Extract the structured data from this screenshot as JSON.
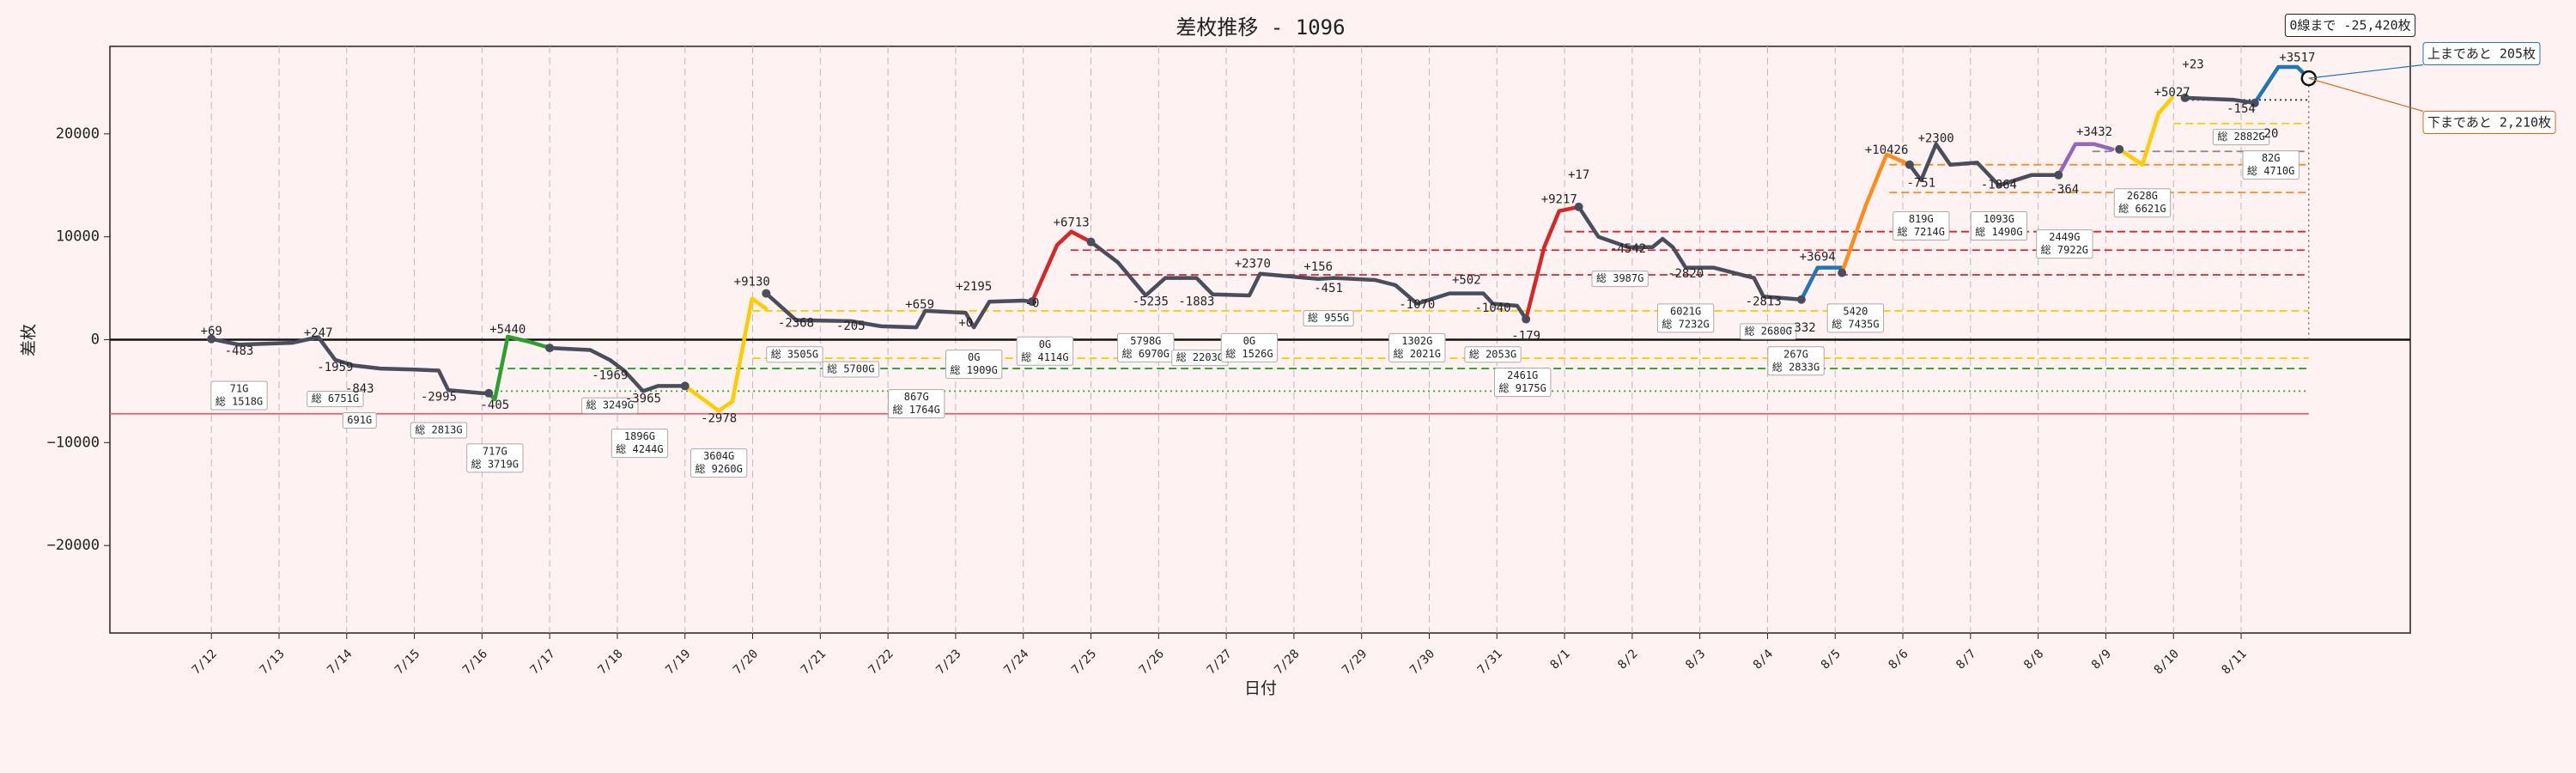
{
  "chart_data": {
    "type": "line",
    "title": "差枚推移 - 1096",
    "x_label": "日付",
    "y_label": "差枚",
    "xlim": [
      -1.5,
      32.5
    ],
    "ylim": [
      -28500,
      28500
    ],
    "xticks": [
      {
        "value": 0,
        "label": "7/12"
      },
      {
        "value": 1,
        "label": "7/13"
      },
      {
        "value": 2,
        "label": "7/14"
      },
      {
        "value": 3,
        "label": "7/15"
      },
      {
        "value": 4,
        "label": "7/16"
      },
      {
        "value": 5,
        "label": "7/17"
      },
      {
        "value": 6,
        "label": "7/18"
      },
      {
        "value": 7,
        "label": "7/19"
      },
      {
        "value": 8,
        "label": "7/20"
      },
      {
        "value": 9,
        "label": "7/21"
      },
      {
        "value": 10,
        "label": "7/22"
      },
      {
        "value": 11,
        "label": "7/23"
      },
      {
        "value": 12,
        "label": "7/24"
      },
      {
        "value": 13,
        "label": "7/25"
      },
      {
        "value": 14,
        "label": "7/26"
      },
      {
        "value": 15,
        "label": "7/27"
      },
      {
        "value": 16,
        "label": "7/28"
      },
      {
        "value": 17,
        "label": "7/29"
      },
      {
        "value": 18,
        "label": "7/30"
      },
      {
        "value": 19,
        "label": "7/31"
      },
      {
        "value": 20,
        "label": "8/1"
      },
      {
        "value": 21,
        "label": "8/2"
      },
      {
        "value": 22,
        "label": "8/3"
      },
      {
        "value": 23,
        "label": "8/4"
      },
      {
        "value": 24,
        "label": "8/5"
      },
      {
        "value": 25,
        "label": "8/6"
      },
      {
        "value": 26,
        "label": "8/7"
      },
      {
        "value": 27,
        "label": "8/8"
      },
      {
        "value": 28,
        "label": "8/9"
      },
      {
        "value": 29,
        "label": "8/10"
      },
      {
        "value": 30,
        "label": "8/11"
      }
    ],
    "holiday_ticks": [
      3,
      6,
      13,
      16,
      24,
      27
    ],
    "holiday_color": "#e02020",
    "yticks": [
      {
        "value": -20000,
        "label": "−20000"
      },
      {
        "value": -10000,
        "label": "−10000"
      },
      0,
      10000,
      20000
    ],
    "grid": true,
    "series": [
      {
        "color": "#4a4e5c",
        "x": [
          0,
          0.41,
          1.2,
          1.58,
          1.83,
          2.1,
          2.5,
          3.0,
          3.36,
          3.5,
          4.0,
          4.1
        ],
        "values": [
          69,
          -483,
          -300,
          247,
          -1959,
          -2500,
          -2800,
          -2900,
          -2995,
          -4900,
          -5200,
          -5200
        ]
      },
      {
        "color": "#2ca02c",
        "x": [
          4.1,
          4.19,
          4.38,
          4.7,
          5.0
        ],
        "values": [
          -5200,
          -5800,
          300,
          -200,
          -800
        ]
      },
      {
        "color": "#4a4e5c",
        "x": [
          5.0,
          5.6,
          5.89,
          6.1,
          6.38,
          6.6,
          7.0
        ],
        "values": [
          -800,
          -1000,
          -1969,
          -3000,
          -5000,
          -4500,
          -4500
        ]
      },
      {
        "color": "#ffcc00",
        "x": [
          7.0,
          7.5,
          7.7,
          7.99,
          8.2
        ],
        "values": [
          -4500,
          -6900,
          -6000,
          4000,
          3000
        ]
      },
      {
        "color": "#4a4e5c",
        "x": [
          8.2,
          8.64,
          9.45,
          9.9,
          10.42,
          10.55,
          11.15,
          11.27,
          11.5,
          12.0,
          12.13
        ],
        "values": [
          4500,
          1900,
          1800,
          1300,
          1200,
          2800,
          2600,
          1200,
          3700,
          3800,
          3700
        ]
      },
      {
        "color": "#d62728",
        "x": [
          12.13,
          12.5,
          12.71,
          13.0
        ],
        "values": [
          3700,
          9200,
          10500,
          9500
        ]
      },
      {
        "color": "#4a4e5c",
        "x": [
          13.0,
          13.4,
          13.81,
          14.1,
          14.56,
          14.8,
          15.34,
          15.5,
          16.36,
          16.6,
          17.2,
          17.5,
          17.82,
          18.3,
          18.8,
          18.94,
          19.3,
          19.43
        ],
        "values": [
          9500,
          7500,
          4300,
          6000,
          6000,
          4400,
          4300,
          6400,
          5900,
          6000,
          5800,
          5300,
          3500,
          4500,
          4500,
          3500,
          3300,
          2000
        ]
      },
      {
        "color": "#d62728",
        "x": [
          19.43,
          19.7,
          19.92,
          20.21
        ],
        "values": [
          2000,
          9000,
          12500,
          12900
        ]
      },
      {
        "color": "#4a4e5c",
        "x": [
          20.21,
          20.5,
          20.94,
          21.3,
          21.45,
          21.6,
          21.79,
          22.2,
          22.8,
          22.94,
          23.5
        ],
        "values": [
          12900,
          10000,
          9000,
          9000,
          9800,
          9000,
          7000,
          7000,
          6000,
          4200,
          3900
        ]
      },
      {
        "color": "#1f77b4",
        "x": [
          23.5,
          23.74,
          24.1
        ],
        "values": [
          3900,
          7000,
          7000
        ]
      },
      {
        "color": "#ff8c1a",
        "x": [
          24.1,
          24.45,
          24.76,
          25.1
        ],
        "values": [
          6500,
          13000,
          18000,
          17000
        ]
      },
      {
        "color": "#4a4e5c",
        "x": [
          25.1,
          25.27,
          25.49,
          25.7,
          26.1,
          26.42,
          26.9,
          27.3
        ],
        "values": [
          17000,
          15500,
          19000,
          17000,
          17200,
          15000,
          16000,
          16000
        ]
      },
      {
        "color": "#9467bd",
        "x": [
          27.3,
          27.55,
          27.83,
          28.1
        ],
        "values": [
          16000,
          19000,
          19000,
          18500
        ]
      },
      {
        "color": "#ffcc00",
        "x": [
          28.2,
          28.54,
          28.78,
          28.98
        ],
        "values": [
          18500,
          17000,
          22000,
          23500
        ]
      },
      {
        "color": "#4a4e5c",
        "x": [
          29.17,
          29.9,
          30.2
        ],
        "values": [
          23500,
          23300,
          23000
        ]
      },
      {
        "color": "#1f77b4",
        "x": [
          30.2,
          30.55,
          30.83,
          31.0
        ],
        "values": [
          23000,
          26500,
          26500,
          25400
        ]
      }
    ],
    "hlines": [
      {
        "value": -7200,
        "color": "#e06070",
        "style": "solid",
        "start": -1.5
      },
      {
        "value": -5000,
        "color": "#2ca02c",
        "style": "dotted",
        "start": 4.2
      },
      {
        "value": -2800,
        "color": "#2ca02c",
        "style": "dashed",
        "start": 4.2
      },
      {
        "value": -1800,
        "color": "#ffcc00",
        "style": "dashed",
        "start": 8.0
      },
      {
        "value": 2800,
        "color": "#ffcc00",
        "style": "dashed",
        "start": 8.0
      },
      {
        "value": 6300,
        "color": "#d62728",
        "style": "dashed",
        "start": 12.7
      },
      {
        "value": 8700,
        "color": "#d62728",
        "style": "dashed",
        "start": 12.7
      },
      {
        "value": 10500,
        "color": "#d62728",
        "style": "dashed",
        "start": 20.0
      },
      {
        "value": 14300,
        "color": "#ff8c1a",
        "style": "dashed",
        "start": 24.8
      },
      {
        "value": 17000,
        "color": "#ff8c1a",
        "style": "dashed",
        "start": 24.8
      },
      {
        "value": 18300,
        "color": "#888888",
        "style": "dashed",
        "start": 27.8
      },
      {
        "value": 21000,
        "color": "#ffcc00",
        "style": "dashed",
        "start": 29.0
      },
      {
        "value": 23300,
        "color": "#333333",
        "style": "dotted",
        "start": 29.2
      }
    ],
    "point_labels": [
      {
        "text": "+69",
        "x": 0,
        "y": 800
      },
      {
        "text": "-483",
        "x": 0.41,
        "y": -1120
      },
      {
        "text": "+247",
        "x": 1.58,
        "y": 640
      },
      {
        "text": "-1959",
        "x": 1.83,
        "y": -2720
      },
      {
        "text": "-843",
        "x": 2.19,
        "y": -4800
      },
      {
        "text": "-2995",
        "x": 3.36,
        "y": -5600
      },
      {
        "text": "+5440",
        "x": 4.38,
        "y": 960,
        "color": "#2ca02c"
      },
      {
        "text": "-405",
        "x": 4.19,
        "y": -6400,
        "color": "#2ca02c"
      },
      {
        "text": "-1969",
        "x": 5.89,
        "y": -3520
      },
      {
        "text": "-3965",
        "x": 6.38,
        "y": -5760
      },
      {
        "text": "-2978",
        "x": 7.5,
        "y": -7680,
        "color": "#ffcc00"
      },
      {
        "text": "+9130",
        "x": 7.99,
        "y": 5600,
        "color": "#ffcc00"
      },
      {
        "text": "-2368",
        "x": 8.64,
        "y": 1600
      },
      {
        "text": "-205",
        "x": 9.45,
        "y": 1280
      },
      {
        "text": "+659",
        "x": 10.47,
        "y": 3360
      },
      {
        "text": "+2195",
        "x": 11.27,
        "y": 5120
      },
      {
        "text": "+0",
        "x": 11.15,
        "y": 1600
      },
      {
        "text": "-0",
        "x": 12.13,
        "y": 3520,
        "color": "#d62728"
      },
      {
        "text": "+6713",
        "x": 12.71,
        "y": 11360,
        "color": "#d62728"
      },
      {
        "text": "-5235",
        "x": 13.88,
        "y": 3680
      },
      {
        "text": "-1883",
        "x": 14.56,
        "y": 3680
      },
      {
        "text": "+2370",
        "x": 15.39,
        "y": 7360
      },
      {
        "text": "+156",
        "x": 16.36,
        "y": 7040
      },
      {
        "text": "-451",
        "x": 16.51,
        "y": 4960
      },
      {
        "text": "-1070",
        "x": 17.82,
        "y": 3360
      },
      {
        "text": "+502",
        "x": 18.55,
        "y": 5760
      },
      {
        "text": "-1040",
        "x": 18.94,
        "y": 3040
      },
      {
        "text": "-179",
        "x": 19.43,
        "y": 320,
        "color": "#d62728"
      },
      {
        "text": "+9217",
        "x": 19.92,
        "y": 13600,
        "color": "#d62728"
      },
      {
        "text": "+17",
        "x": 20.21,
        "y": 16000
      },
      {
        "text": "-4542",
        "x": 20.94,
        "y": 8800
      },
      {
        "text": "-2820",
        "x": 21.79,
        "y": 6400
      },
      {
        "text": "-2813",
        "x": 22.94,
        "y": 3680
      },
      {
        "text": "+3694",
        "x": 23.74,
        "y": 8000,
        "color": "#1f77b4"
      },
      {
        "text": "-332",
        "x": 23.5,
        "y": 1120,
        "color": "#1f77b4"
      },
      {
        "text": "+10426",
        "x": 24.76,
        "y": 18400,
        "color": "#ff8c1a"
      },
      {
        "text": "-751",
        "x": 25.27,
        "y": 15200
      },
      {
        "text": "+2300",
        "x": 25.49,
        "y": 19520
      },
      {
        "text": "-1864",
        "x": 26.42,
        "y": 15040
      },
      {
        "text": "-364",
        "x": 27.39,
        "y": 14560,
        "color": "#9467bd"
      },
      {
        "text": "+3432",
        "x": 27.83,
        "y": 20160,
        "color": "#9467bd"
      },
      {
        "text": "+5027",
        "x": 28.98,
        "y": 24000,
        "color": "#ffcc00"
      },
      {
        "text": "+23",
        "x": 29.29,
        "y": 26720
      },
      {
        "text": "-154",
        "x": 30.0,
        "y": 22400
      },
      {
        "text": "-20",
        "x": 30.39,
        "y": 20000,
        "color": "#1f77b4"
      },
      {
        "text": "+3517",
        "x": 30.83,
        "y": 27360,
        "color": "#1f77b4"
      }
    ],
    "game_boxes": [
      {
        "lines": [
          "71G",
          "総 1518G"
        ],
        "x": 0.41,
        "y": -4800
      },
      {
        "lines": [
          "総 6751G"
        ],
        "x": 1.83,
        "y": -5760
      },
      {
        "lines": [
          "691G"
        ],
        "x": 2.19,
        "y": -7840
      },
      {
        "lines": [
          "総 2813G"
        ],
        "x": 3.36,
        "y": -8800
      },
      {
        "lines": [
          "717G",
          "総 3719G"
        ],
        "x": 4.19,
        "y": -10880
      },
      {
        "lines": [
          "総 3249G"
        ],
        "x": 5.89,
        "y": -6400
      },
      {
        "lines": [
          "1896G",
          "総 4244G"
        ],
        "x": 6.33,
        "y": -9440
      },
      {
        "lines": [
          "3604G",
          "総 9260G"
        ],
        "x": 7.5,
        "y": -11360
      },
      {
        "lines": [
          "総 3505G"
        ],
        "x": 8.62,
        "y": -1440
      },
      {
        "lines": [
          "総 5700G"
        ],
        "x": 9.45,
        "y": -2880
      },
      {
        "lines": [
          "867G",
          "総 1764G"
        ],
        "x": 10.42,
        "y": -5600
      },
      {
        "lines": [
          "0G",
          "総 1909G"
        ],
        "x": 11.27,
        "y": -1760
      },
      {
        "lines": [
          "0G",
          "総 4114G"
        ],
        "x": 12.32,
        "y": -480
      },
      {
        "lines": [
          "5798G",
          "総 6970G"
        ],
        "x": 13.81,
        "y": -160
      },
      {
        "lines": [
          "総 2203G"
        ],
        "x": 14.61,
        "y": -1760
      },
      {
        "lines": [
          "0G",
          "総 1526G"
        ],
        "x": 15.34,
        "y": -160
      },
      {
        "lines": [
          "総 955G"
        ],
        "x": 16.51,
        "y": 2080
      },
      {
        "lines": [
          "1302G",
          "総 2021G"
        ],
        "x": 17.82,
        "y": -160
      },
      {
        "lines": [
          "総 2053G"
        ],
        "x": 18.94,
        "y": -1440
      },
      {
        "lines": [
          "2461G",
          "総 9175G"
        ],
        "x": 19.38,
        "y": -3520
      },
      {
        "lines": [
          "総 3987G"
        ],
        "x": 20.82,
        "y": 5920
      },
      {
        "lines": [
          "6021G",
          "総 7232G"
        ],
        "x": 21.79,
        "y": 2720
      },
      {
        "lines": [
          "総 2680G"
        ],
        "x": 23.01,
        "y": 800
      },
      {
        "lines": [
          "267G",
          "総 2833G"
        ],
        "x": 23.42,
        "y": -1440
      },
      {
        "lines": [
          "5420",
          "総 7435G"
        ],
        "x": 24.3,
        "y": 2720
      },
      {
        "lines": [
          "819G",
          "総 7214G"
        ],
        "x": 25.27,
        "y": 11680
      },
      {
        "lines": [
          "1093G",
          "総 1490G"
        ],
        "x": 26.42,
        "y": 11680
      },
      {
        "lines": [
          "2449G",
          "総 7922G"
        ],
        "x": 27.39,
        "y": 9920
      },
      {
        "lines": [
          "2628G",
          "総 6621G"
        ],
        "x": 28.54,
        "y": 13920
      },
      {
        "lines": [
          "総 2882G"
        ],
        "x": 30.0,
        "y": 19680
      },
      {
        "lines": [
          "82G",
          "総 4710G"
        ],
        "x": 30.44,
        "y": 17600
      }
    ],
    "callouts": {
      "zero_line": "0線まで -25,420枚",
      "to_top": {
        "text": "上まであと 205枚",
        "color": "#1f77b4"
      },
      "to_bottom": {
        "text": "下まであと 2,210枚",
        "color": "#d2691e"
      }
    }
  }
}
